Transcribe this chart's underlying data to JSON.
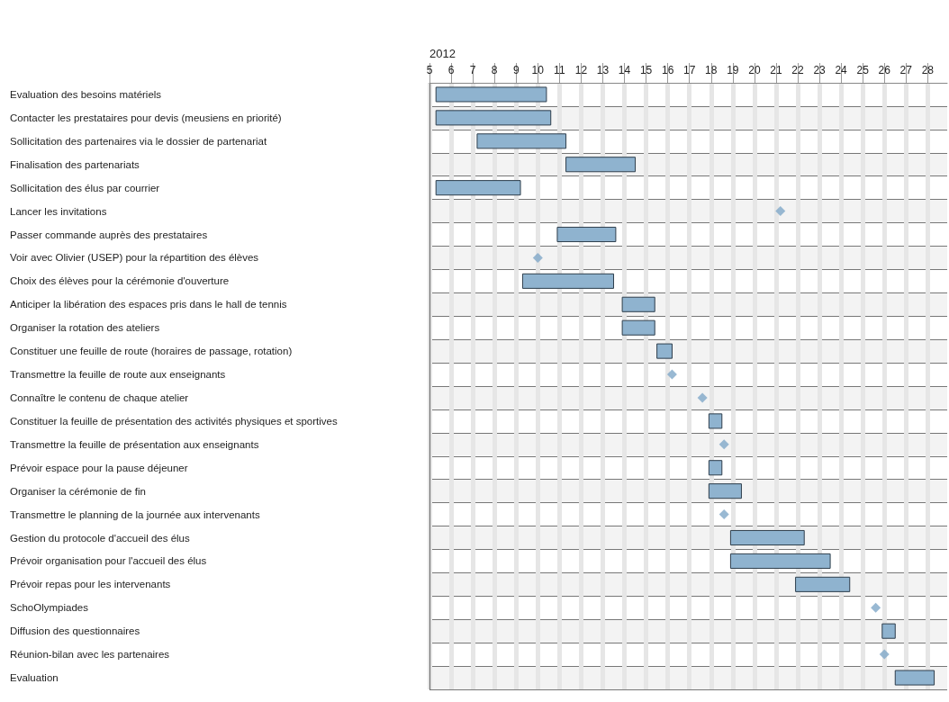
{
  "chart_data": {
    "type": "bar",
    "orientation": "horizontal",
    "xlabel": "2012",
    "categories": [
      "Evaluation des besoins matériels",
      "Contacter les prestataires pour devis (meusiens en priorité)",
      "Sollicitation des partenaires via le dossier de partenariat",
      "Finalisation des partenariats",
      "Sollicitation des élus par courrier",
      "Lancer les invitations",
      "Passer commande auprès des prestataires",
      "Voir avec Olivier (USEP) pour la répartition des élèves",
      "Choix des élèves pour la cérémonie d'ouverture",
      "Anticiper la libération des espaces pris dans le hall de tennis",
      "Organiser la rotation des ateliers",
      "Constituer une feuille de route (horaires de passage, rotation)",
      "Transmettre la feuille de route aux enseignants",
      "Connaître le contenu de chaque atelier",
      "Constituer la feuille de présentation des activités physiques et sportives",
      "Transmettre la feuille de présentation aux enseignants",
      "Prévoir espace pour la pause déjeuner",
      "Organiser la cérémonie de fin",
      "Transmettre le planning de la journée aux intervenants",
      "Gestion du protocole d'accueil des élus",
      "Prévoir organisation pour l'accueil des élus",
      "Prévoir repas pour les intervenants",
      "SchoOlympiades",
      "Diffusion des questionnaires",
      "Réunion-bilan avec les partenaires",
      "Evaluation"
    ],
    "series": [
      {
        "type": "bar",
        "color": "#8fb3cf",
        "base": [
          5.3,
          5.3,
          7.2,
          11.3,
          5.3,
          null,
          10.9,
          null,
          9.3,
          13.9,
          13.9,
          15.5,
          null,
          null,
          17.9,
          null,
          17.9,
          17.9,
          null,
          18.9,
          18.9,
          21.9,
          null,
          25.9,
          null,
          26.5
        ],
        "values": [
          5.1,
          5.3,
          4.1,
          3.2,
          3.9,
          null,
          2.7,
          null,
          4.2,
          1.5,
          1.5,
          0.7,
          null,
          null,
          0.6,
          null,
          0.6,
          1.5,
          null,
          3.4,
          4.6,
          2.5,
          null,
          0.6,
          null,
          1.8
        ]
      },
      {
        "type": "scatter",
        "color": "#7fa8c8",
        "marker": "diamond",
        "values": [
          null,
          null,
          null,
          null,
          null,
          21.2,
          null,
          10.0,
          null,
          null,
          null,
          null,
          16.2,
          17.6,
          null,
          18.6,
          null,
          null,
          18.6,
          null,
          null,
          null,
          25.6,
          null,
          26.0,
          null
        ]
      }
    ],
    "xlim": [
      5,
      28.9
    ],
    "xticks": [
      5,
      6,
      7,
      8,
      9,
      10,
      11,
      12,
      13,
      14,
      15,
      16,
      17,
      18,
      19,
      20,
      21,
      22,
      23,
      24,
      25,
      26,
      27,
      28
    ],
    "grid": true
  }
}
